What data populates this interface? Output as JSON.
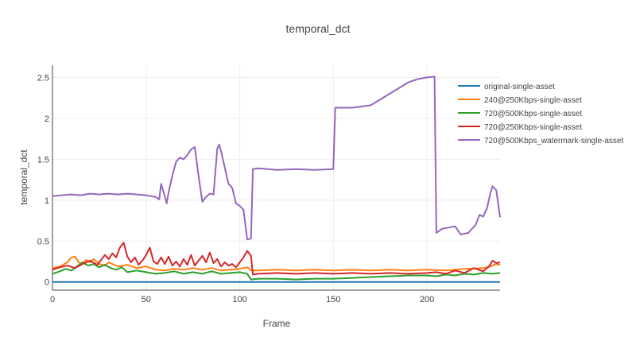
{
  "chart_data": {
    "type": "line",
    "title": "temporal_dct",
    "xlabel": "Frame",
    "ylabel": "temporal_dct",
    "xlim": [
      0,
      239
    ],
    "ylim": [
      -0.1,
      2.65
    ],
    "xticks": [
      0,
      50,
      100,
      150,
      200
    ],
    "yticks": [
      0,
      0.5,
      1,
      1.5,
      2,
      2.5
    ],
    "ytick_labels": [
      "0",
      "0.5",
      "1",
      "1.5",
      "2",
      "2.5"
    ],
    "grid": true,
    "legend_position": "top-right",
    "series": [
      {
        "name": "original-single-asset",
        "color": "#1f77b4",
        "points": [
          [
            0,
            0
          ],
          [
            239,
            0
          ]
        ]
      },
      {
        "name": "240@250Kbps-single-asset",
        "color": "#ff7f0e",
        "points": [
          [
            0,
            0.17
          ],
          [
            4,
            0.19
          ],
          [
            8,
            0.24
          ],
          [
            10,
            0.3
          ],
          [
            12,
            0.31
          ],
          [
            14,
            0.24
          ],
          [
            16,
            0.22
          ],
          [
            18,
            0.27
          ],
          [
            20,
            0.24
          ],
          [
            22,
            0.28
          ],
          [
            25,
            0.22
          ],
          [
            28,
            0.2
          ],
          [
            30,
            0.24
          ],
          [
            35,
            0.19
          ],
          [
            40,
            0.21
          ],
          [
            45,
            0.17
          ],
          [
            50,
            0.19
          ],
          [
            55,
            0.15
          ],
          [
            60,
            0.14
          ],
          [
            65,
            0.16
          ],
          [
            70,
            0.15
          ],
          [
            75,
            0.17
          ],
          [
            80,
            0.15
          ],
          [
            85,
            0.17
          ],
          [
            90,
            0.14
          ],
          [
            95,
            0.15
          ],
          [
            100,
            0.16
          ],
          [
            104,
            0.18
          ],
          [
            106,
            0.14
          ],
          [
            110,
            0.14
          ],
          [
            120,
            0.15
          ],
          [
            130,
            0.14
          ],
          [
            140,
            0.15
          ],
          [
            150,
            0.14
          ],
          [
            160,
            0.15
          ],
          [
            170,
            0.14
          ],
          [
            180,
            0.15
          ],
          [
            190,
            0.14
          ],
          [
            200,
            0.15
          ],
          [
            210,
            0.14
          ],
          [
            220,
            0.16
          ],
          [
            230,
            0.17
          ],
          [
            234,
            0.19
          ],
          [
            237,
            0.22
          ],
          [
            239,
            0.21
          ]
        ]
      },
      {
        "name": "720@500Kbps-single-asset",
        "color": "#2ca02c",
        "points": [
          [
            0,
            0.1
          ],
          [
            4,
            0.13
          ],
          [
            7,
            0.16
          ],
          [
            10,
            0.14
          ],
          [
            13,
            0.19
          ],
          [
            16,
            0.24
          ],
          [
            19,
            0.2
          ],
          [
            22,
            0.22
          ],
          [
            25,
            0.18
          ],
          [
            28,
            0.21
          ],
          [
            31,
            0.17
          ],
          [
            34,
            0.15
          ],
          [
            37,
            0.18
          ],
          [
            40,
            0.12
          ],
          [
            45,
            0.14
          ],
          [
            50,
            0.12
          ],
          [
            55,
            0.1
          ],
          [
            60,
            0.11
          ],
          [
            65,
            0.13
          ],
          [
            70,
            0.1
          ],
          [
            75,
            0.12
          ],
          [
            80,
            0.1
          ],
          [
            85,
            0.13
          ],
          [
            90,
            0.1
          ],
          [
            95,
            0.11
          ],
          [
            100,
            0.12
          ],
          [
            104,
            0.1
          ],
          [
            106,
            0.03
          ],
          [
            110,
            0.04
          ],
          [
            120,
            0.04
          ],
          [
            130,
            0.03
          ],
          [
            140,
            0.04
          ],
          [
            150,
            0.04
          ],
          [
            160,
            0.05
          ],
          [
            170,
            0.06
          ],
          [
            180,
            0.07
          ],
          [
            190,
            0.08
          ],
          [
            200,
            0.08
          ],
          [
            205,
            0.07
          ],
          [
            210,
            0.09
          ],
          [
            215,
            0.08
          ],
          [
            220,
            0.1
          ],
          [
            225,
            0.09
          ],
          [
            230,
            0.11
          ],
          [
            235,
            0.1
          ],
          [
            239,
            0.11
          ]
        ]
      },
      {
        "name": "720@250Kbps-single-asset",
        "color": "#d62728",
        "points": [
          [
            0,
            0.15
          ],
          [
            4,
            0.18
          ],
          [
            8,
            0.2
          ],
          [
            12,
            0.17
          ],
          [
            16,
            0.22
          ],
          [
            20,
            0.26
          ],
          [
            24,
            0.21
          ],
          [
            28,
            0.33
          ],
          [
            30,
            0.28
          ],
          [
            32,
            0.35
          ],
          [
            34,
            0.3
          ],
          [
            36,
            0.42
          ],
          [
            38,
            0.48
          ],
          [
            40,
            0.31
          ],
          [
            42,
            0.24
          ],
          [
            44,
            0.3
          ],
          [
            46,
            0.21
          ],
          [
            48,
            0.26
          ],
          [
            50,
            0.33
          ],
          [
            52,
            0.42
          ],
          [
            54,
            0.25
          ],
          [
            56,
            0.22
          ],
          [
            58,
            0.3
          ],
          [
            60,
            0.22
          ],
          [
            62,
            0.31
          ],
          [
            64,
            0.2
          ],
          [
            66,
            0.25
          ],
          [
            68,
            0.19
          ],
          [
            70,
            0.28
          ],
          [
            72,
            0.21
          ],
          [
            74,
            0.33
          ],
          [
            76,
            0.2
          ],
          [
            78,
            0.26
          ],
          [
            80,
            0.32
          ],
          [
            82,
            0.24
          ],
          [
            84,
            0.36
          ],
          [
            86,
            0.23
          ],
          [
            88,
            0.28
          ],
          [
            90,
            0.19
          ],
          [
            92,
            0.24
          ],
          [
            94,
            0.2
          ],
          [
            96,
            0.22
          ],
          [
            98,
            0.18
          ],
          [
            100,
            0.24
          ],
          [
            102,
            0.3
          ],
          [
            104,
            0.38
          ],
          [
            106,
            0.32
          ],
          [
            107,
            0.09
          ],
          [
            110,
            0.1
          ],
          [
            120,
            0.11
          ],
          [
            130,
            0.1
          ],
          [
            140,
            0.11
          ],
          [
            150,
            0.1
          ],
          [
            160,
            0.11
          ],
          [
            170,
            0.1
          ],
          [
            180,
            0.11
          ],
          [
            190,
            0.1
          ],
          [
            200,
            0.11
          ],
          [
            205,
            0.12
          ],
          [
            210,
            0.1
          ],
          [
            215,
            0.14
          ],
          [
            220,
            0.11
          ],
          [
            225,
            0.17
          ],
          [
            230,
            0.13
          ],
          [
            233,
            0.19
          ],
          [
            235,
            0.26
          ],
          [
            237,
            0.23
          ],
          [
            239,
            0.24
          ]
        ]
      },
      {
        "name": "720@500Kbps_watermark-single-asset",
        "color": "#9467bd",
        "points": [
          [
            0,
            1.05
          ],
          [
            5,
            1.06
          ],
          [
            10,
            1.07
          ],
          [
            15,
            1.06
          ],
          [
            20,
            1.08
          ],
          [
            25,
            1.07
          ],
          [
            30,
            1.08
          ],
          [
            35,
            1.07
          ],
          [
            40,
            1.08
          ],
          [
            45,
            1.07
          ],
          [
            50,
            1.06
          ],
          [
            55,
            1.04
          ],
          [
            57,
            1.01
          ],
          [
            58,
            1.2
          ],
          [
            60,
            1.05
          ],
          [
            61,
            0.96
          ],
          [
            62,
            1.1
          ],
          [
            64,
            1.3
          ],
          [
            66,
            1.47
          ],
          [
            68,
            1.52
          ],
          [
            70,
            1.5
          ],
          [
            72,
            1.55
          ],
          [
            74,
            1.62
          ],
          [
            76,
            1.65
          ],
          [
            78,
            1.3
          ],
          [
            80,
            0.98
          ],
          [
            82,
            1.04
          ],
          [
            84,
            1.08
          ],
          [
            86,
            1.07
          ],
          [
            88,
            1.63
          ],
          [
            89,
            1.68
          ],
          [
            90,
            1.6
          ],
          [
            92,
            1.4
          ],
          [
            94,
            1.2
          ],
          [
            96,
            1.15
          ],
          [
            98,
            0.96
          ],
          [
            100,
            0.93
          ],
          [
            102,
            0.88
          ],
          [
            104,
            0.52
          ],
          [
            106,
            0.53
          ],
          [
            107,
            1.38
          ],
          [
            110,
            1.39
          ],
          [
            120,
            1.37
          ],
          [
            130,
            1.38
          ],
          [
            140,
            1.37
          ],
          [
            150,
            1.38
          ],
          [
            151,
            2.13
          ],
          [
            160,
            2.13
          ],
          [
            170,
            2.16
          ],
          [
            180,
            2.3
          ],
          [
            190,
            2.44
          ],
          [
            195,
            2.48
          ],
          [
            200,
            2.5
          ],
          [
            204,
            2.51
          ],
          [
            205,
            0.6
          ],
          [
            208,
            0.65
          ],
          [
            215,
            0.68
          ],
          [
            218,
            0.58
          ],
          [
            222,
            0.6
          ],
          [
            226,
            0.7
          ],
          [
            228,
            0.82
          ],
          [
            230,
            0.8
          ],
          [
            232,
            0.9
          ],
          [
            234,
            1.1
          ],
          [
            235,
            1.17
          ],
          [
            237,
            1.12
          ],
          [
            239,
            0.79
          ]
        ]
      }
    ]
  }
}
